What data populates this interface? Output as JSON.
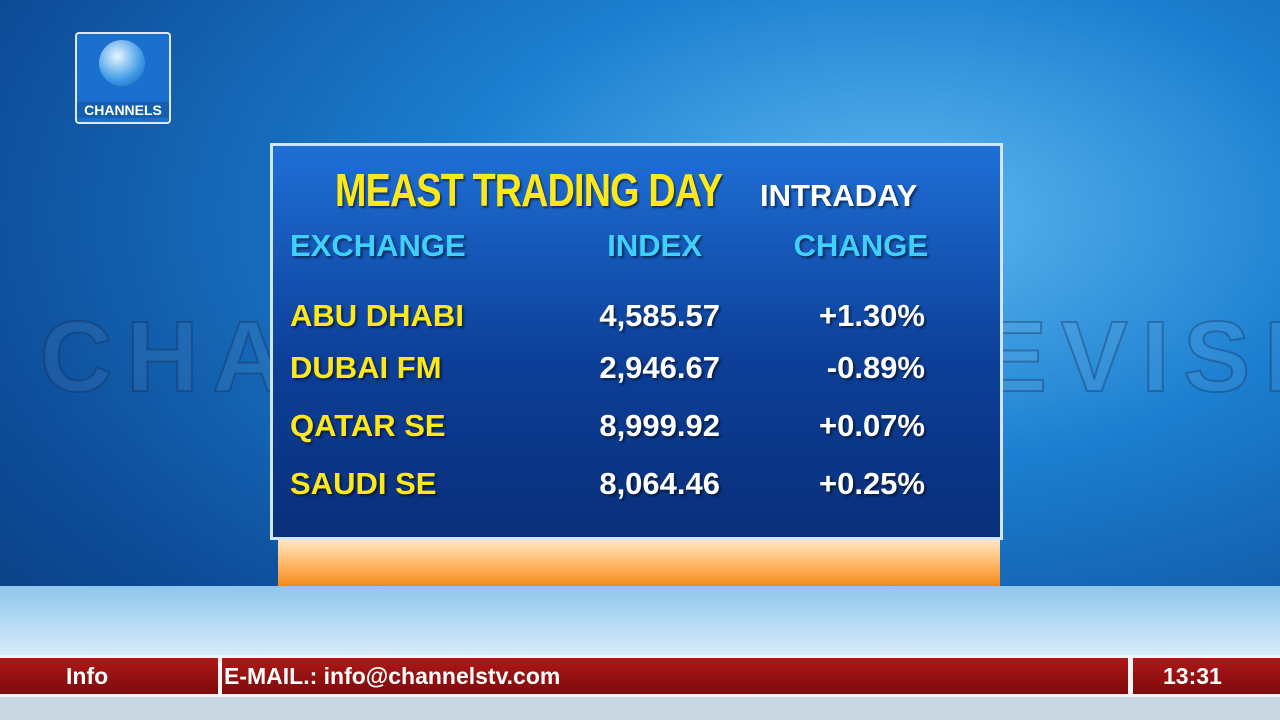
{
  "logo": "CHANNELS",
  "watermark": "CHANNELS TELEVISION",
  "board": {
    "title": "MEAST TRADING DAY",
    "subheader": "INTRADAY",
    "columns": [
      "EXCHANGE",
      "INDEX",
      "CHANGE"
    ],
    "rows": [
      [
        "ABU DHABI",
        "4,585.57",
        "+1.30%"
      ],
      [
        "DUBAI FM",
        "2,946.67",
        "-0.89%"
      ],
      [
        "QATAR SE",
        "8,999.92",
        "+0.07%"
      ],
      [
        "SAUDI SE",
        "8,064.46",
        "+0.25%"
      ]
    ]
  },
  "ticker": {
    "label": "Info",
    "text": "E-MAIL.: info@channelstv.com",
    "time": "13:31"
  }
}
